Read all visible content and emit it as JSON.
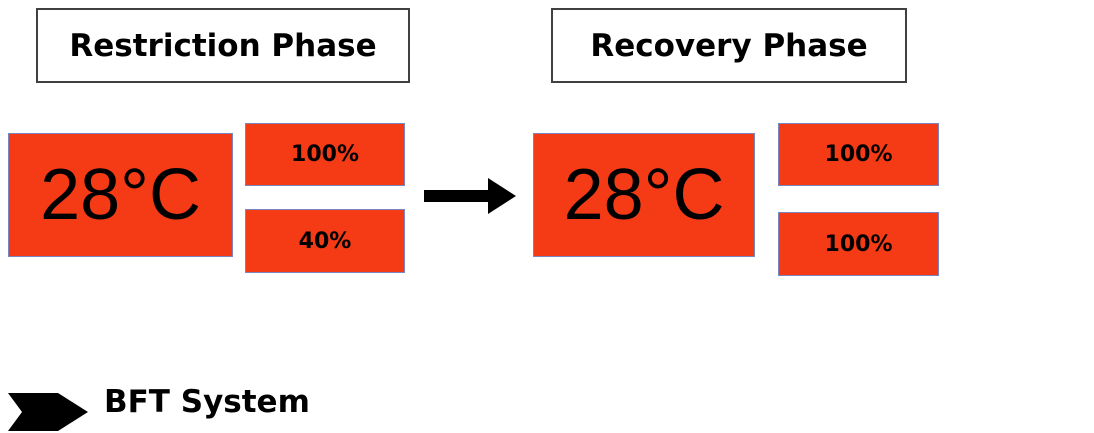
{
  "restriction": {
    "title": "Restriction Phase",
    "temperature": "28°C",
    "top_value": "100%",
    "bottom_value": "40%"
  },
  "recovery": {
    "title": "Recovery Phase",
    "temperature": "28°C",
    "top_value": "100%",
    "bottom_value": "100%"
  },
  "legend": {
    "icon": "arrow-right-icon",
    "label": "BFT System"
  },
  "colors": {
    "box_fill": "#f53a16",
    "box_border": "#7a86c0",
    "label_border": "#404040",
    "arrow": "#000000"
  }
}
